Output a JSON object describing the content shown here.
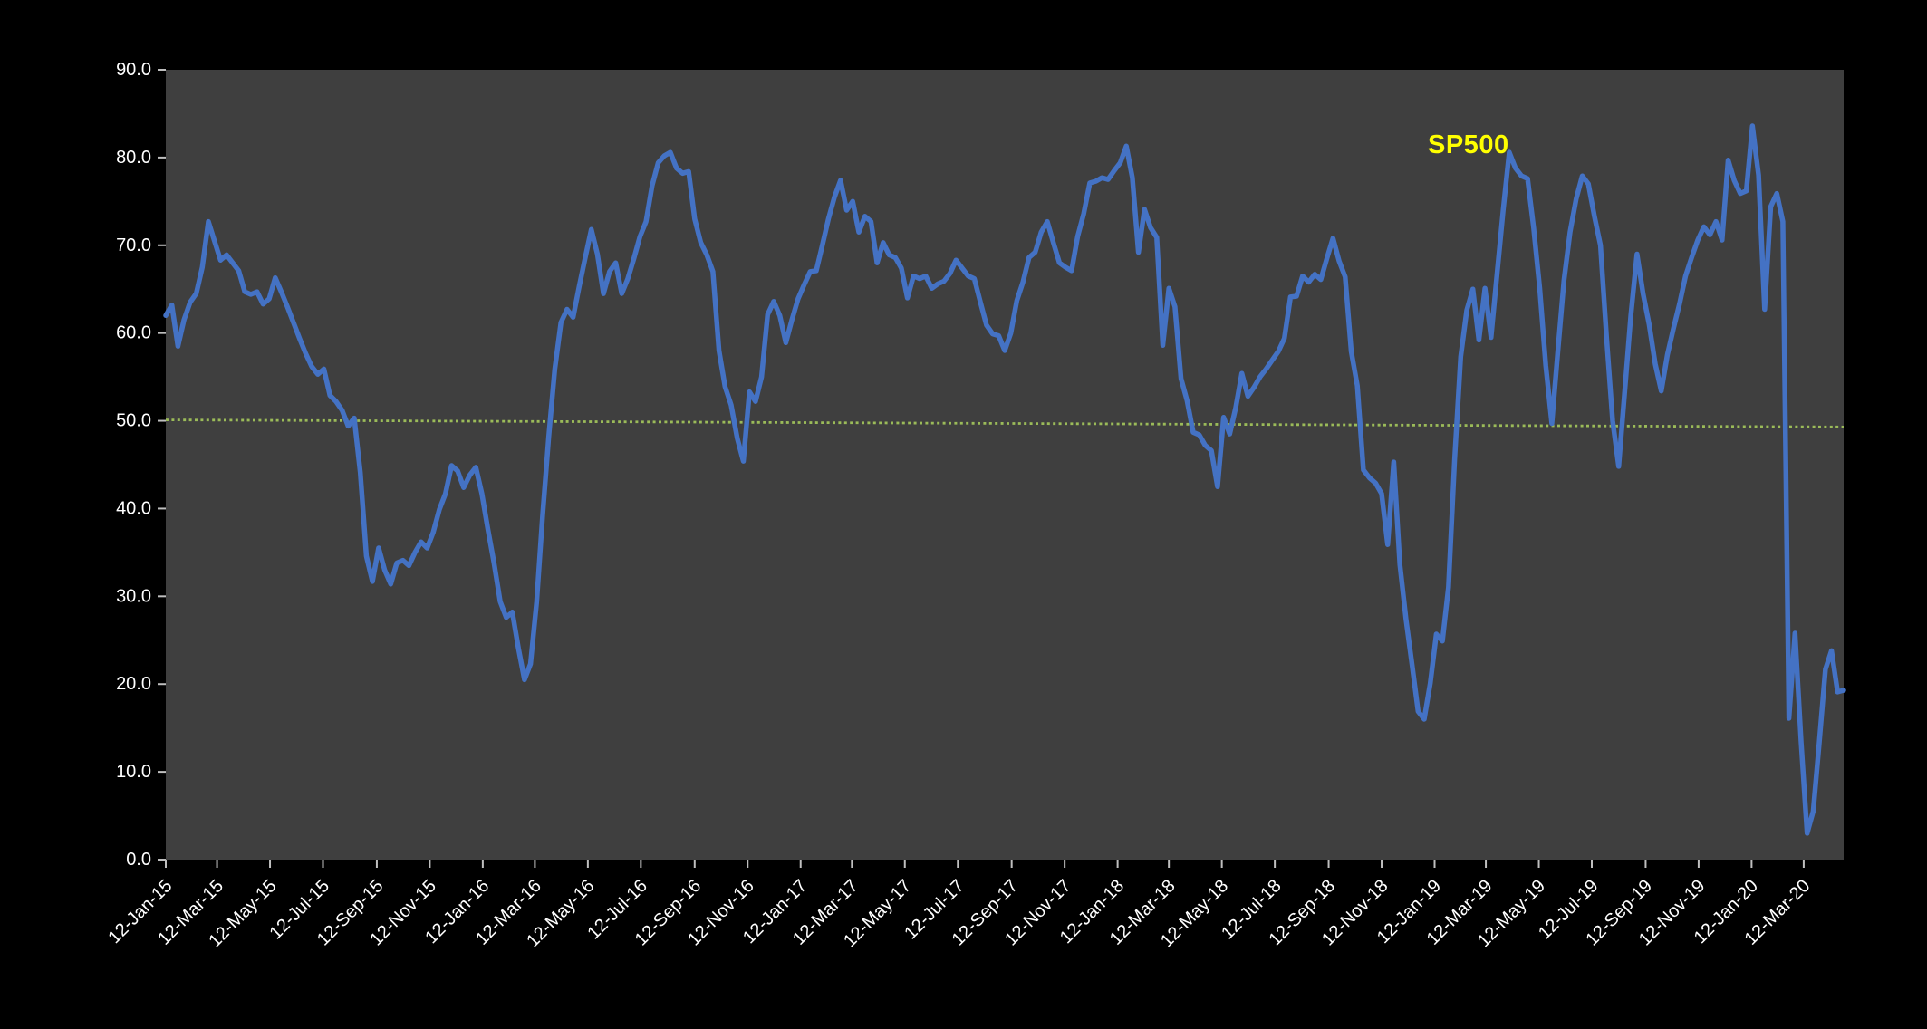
{
  "chart_data": {
    "type": "line",
    "title": "",
    "series_label": "SP500",
    "series_label_color": "#FFFF00",
    "series_color": "#4472C4",
    "plot_bg": "#3F3F3F",
    "page_bg": "#000000",
    "axis_text_color": "#FFFFFF",
    "tick_mark_color": "#BFBFBF",
    "grid": "off",
    "legend_position": "none",
    "ylim": [
      0,
      90
    ],
    "y_tick_labels": [
      "90.0",
      "80.0",
      "70.0",
      "60.0",
      "50.0",
      "40.0",
      "30.0",
      "20.0",
      "10.0",
      "0.0"
    ],
    "x_tick_labels": [
      "12-Jan-15",
      "12-Mar-15",
      "12-May-15",
      "12-Jul-15",
      "12-Sep-15",
      "12-Nov-15",
      "12-Jan-16",
      "12-Mar-16",
      "12-May-16",
      "12-Jul-16",
      "12-Sep-16",
      "12-Nov-16",
      "12-Jan-17",
      "12-Mar-17",
      "12-May-17",
      "12-Jul-17",
      "12-Sep-17",
      "12-Nov-17",
      "12-Jan-18",
      "12-Mar-18",
      "12-May-18",
      "12-Jul-18",
      "12-Sep-18",
      "12-Nov-18",
      "12-Jan-19",
      "12-Mar-19",
      "12-May-19",
      "12-Jul-19",
      "12-Sep-19",
      "12-Nov-19",
      "12-Jan-20",
      "12-Mar-20"
    ],
    "x_unit": "weeks",
    "x_total_weeks": 276,
    "reference_line": {
      "color": "#9BBB59",
      "style": "dotted",
      "start_value": 50.1,
      "end_value": 49.3
    },
    "values_weekly": [
      62.0,
      63.2,
      58.5,
      61.5,
      63.5,
      64.5,
      67.5,
      72.7,
      70.5,
      68.3,
      68.9,
      68.0,
      67.1,
      64.7,
      64.4,
      64.7,
      63.3,
      63.9,
      66.3,
      64.7,
      63.0,
      61.2,
      59.4,
      57.7,
      56.2,
      55.3,
      55.9,
      52.9,
      52.2,
      51.2,
      49.4,
      50.3,
      44.1,
      34.6,
      31.7,
      35.5,
      33.0,
      31.4,
      33.8,
      34.1,
      33.5,
      35.0,
      36.2,
      35.5,
      37.3,
      39.9,
      41.7,
      44.9,
      44.3,
      42.4,
      43.8,
      44.7,
      41.7,
      37.6,
      33.8,
      29.4,
      27.6,
      28.2,
      24.1,
      20.5,
      22.3,
      29.3,
      39.3,
      48.2,
      55.9,
      61.2,
      62.7,
      61.8,
      65.3,
      68.6,
      71.8,
      69.0,
      64.5,
      67.0,
      68.0,
      64.5,
      66.2,
      68.5,
      71.0,
      72.7,
      76.8,
      79.4,
      80.2,
      80.6,
      78.8,
      78.2,
      78.4,
      73.0,
      70.3,
      68.9,
      67.0,
      58.0,
      53.9,
      51.8,
      48.0,
      45.4,
      53.3,
      52.2,
      55.0,
      62.1,
      63.6,
      62.0,
      58.9,
      61.5,
      63.9,
      65.5,
      67.0,
      67.1,
      70.0,
      73.0,
      75.5,
      77.4,
      74.0,
      75.0,
      71.5,
      73.3,
      72.7,
      68.0,
      70.3,
      68.9,
      68.6,
      67.4,
      64.0,
      66.5,
      66.2,
      66.5,
      65.1,
      65.6,
      65.9,
      66.8,
      68.3,
      67.4,
      66.5,
      66.2,
      63.5,
      60.9,
      59.9,
      59.7,
      58.0,
      60.0,
      63.7,
      65.8,
      68.6,
      69.2,
      71.5,
      72.7,
      70.3,
      68.0,
      67.5,
      67.1,
      71.0,
      73.6,
      77.1,
      77.3,
      77.7,
      77.5,
      78.5,
      79.4,
      81.3,
      77.7,
      69.2,
      74.1,
      72.0,
      70.9,
      58.6,
      65.1,
      63.0,
      54.8,
      52.3,
      48.7,
      48.4,
      47.2,
      46.6,
      42.5,
      50.4,
      48.5,
      51.5,
      55.4,
      52.8,
      53.8,
      55.0,
      55.9,
      56.9,
      57.9,
      59.4,
      64.1,
      64.2,
      66.5,
      65.8,
      66.7,
      66.1,
      68.5,
      70.8,
      68.2,
      66.4,
      57.9,
      54.0,
      44.4,
      43.5,
      42.9,
      41.7,
      35.9,
      45.3,
      33.6,
      27.4,
      22.2,
      16.9,
      16.0,
      20.1,
      25.7,
      24.9,
      31.0,
      45.6,
      57.3,
      62.6,
      65.0,
      59.2,
      65.1,
      59.5,
      66.8,
      74.0,
      80.6,
      78.8,
      77.9,
      77.6,
      72.0,
      65.1,
      56.3,
      49.7,
      58.0,
      66.0,
      71.5,
      75.3,
      77.9,
      77.0,
      73.3,
      70.0,
      59.5,
      50.0,
      44.8,
      53.4,
      62.0,
      69.0,
      64.5,
      61.0,
      56.5,
      53.4,
      57.5,
      60.5,
      63.3,
      66.5,
      68.6,
      70.6,
      72.1,
      71.2,
      72.7,
      70.6,
      79.7,
      77.4,
      75.9,
      76.2,
      83.6,
      78.0,
      62.7,
      74.4,
      75.9,
      72.7,
      16.1,
      25.8,
      13.5,
      3.0,
      5.5,
      13.5,
      21.7,
      23.8,
      19.1,
      19.3
    ]
  }
}
